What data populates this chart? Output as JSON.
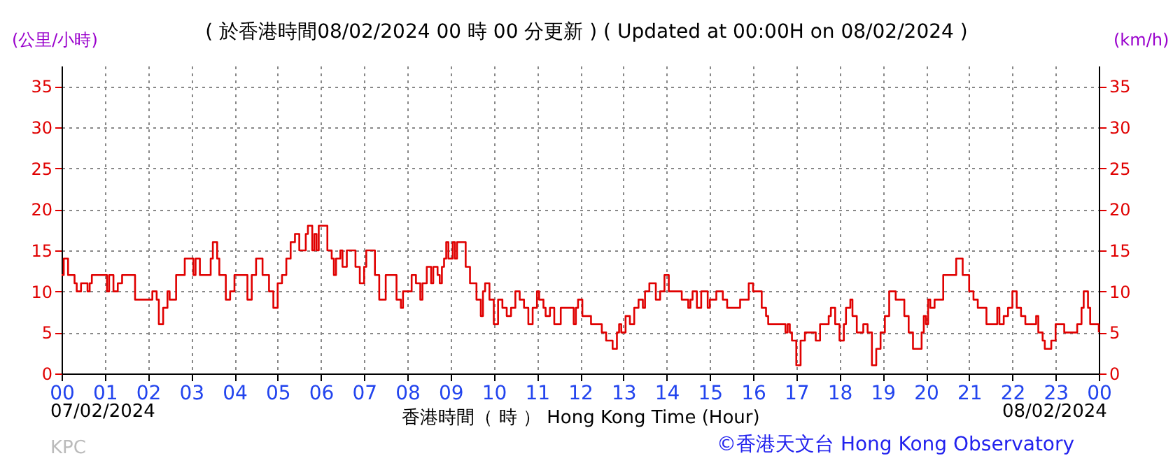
{
  "chart_data": {
    "type": "step",
    "title": "( 於香港時間08/02/2024 00 時 00 分更新 ) ( Updated at 00:00H on 08/02/2024 )",
    "xlabel": "香港時間（ 時 ） Hong Kong Time (Hour)",
    "ylabel": "(公里/小時)",
    "y2label": "(km/h)",
    "annotations": [
      "07/02/2024",
      "08/02/2024",
      "KPC",
      "©香港天文台 Hong Kong Observatory"
    ],
    "x": [
      0,
      0.05,
      0.15,
      0.3,
      0.35,
      0.45,
      0.6,
      0.65,
      0.7,
      1.0,
      1.05,
      1.1,
      1.2,
      1.3,
      1.4,
      1.65,
      1.7,
      2.0,
      2.1,
      2.2,
      2.25,
      2.35,
      2.45,
      2.5,
      2.65,
      2.8,
      2.85,
      3.0,
      3.05,
      3.1,
      3.2,
      3.35,
      3.45,
      3.5,
      3.6,
      3.65,
      3.8,
      3.9,
      4.0,
      4.25,
      4.3,
      4.4,
      4.5,
      4.65,
      4.8,
      4.9,
      5.0,
      5.1,
      5.2,
      5.3,
      5.4,
      5.5,
      5.65,
      5.7,
      5.8,
      5.85,
      5.9,
      5.95,
      6.15,
      6.25,
      6.3,
      6.35,
      6.45,
      6.5,
      6.6,
      6.8,
      6.9,
      7.0,
      7.05,
      7.25,
      7.35,
      7.5,
      7.75,
      7.85,
      7.9,
      8.1,
      8.2,
      8.3,
      8.35,
      8.45,
      8.55,
      8.6,
      8.7,
      8.75,
      8.8,
      8.85,
      8.9,
      8.95,
      9.05,
      9.1,
      9.15,
      9.35,
      9.45,
      9.6,
      9.7,
      9.75,
      9.8,
      9.9,
      10.0,
      10.1,
      10.2,
      10.3,
      10.4,
      10.5,
      10.6,
      10.7,
      10.8,
      10.9,
      11.0,
      11.05,
      11.15,
      11.2,
      11.3,
      11.4,
      11.55,
      11.85,
      11.9,
      11.95,
      12.05,
      12.25,
      12.5,
      12.6,
      12.75,
      12.85,
      12.9,
      12.95,
      13.05,
      13.15,
      13.25,
      13.35,
      13.45,
      13.5,
      13.6,
      13.75,
      13.85,
      13.95,
      14.05,
      14.35,
      14.5,
      14.55,
      14.6,
      14.7,
      14.8,
      14.95,
      15.0,
      15.15,
      15.3,
      15.4,
      15.7,
      15.9,
      16.0,
      16.2,
      16.3,
      16.35,
      16.7,
      16.75,
      16.8,
      16.85,
      16.9,
      17.0,
      17.1,
      17.2,
      17.45,
      17.55,
      17.75,
      17.8,
      17.9,
      18.0,
      18.1,
      18.15,
      18.25,
      18.3,
      18.4,
      18.55,
      18.65,
      18.75,
      18.85,
      18.95,
      19.05,
      19.15,
      19.3,
      19.5,
      19.6,
      19.7,
      19.9,
      19.95,
      20.0,
      20.05,
      20.1,
      20.2,
      20.4,
      20.7,
      20.85,
      21.0,
      21.1,
      21.2,
      21.4,
      21.65,
      21.7,
      21.8,
      21.9,
      22.0,
      22.1,
      22.2,
      22.3,
      22.55,
      22.6,
      22.7,
      22.75,
      22.9,
      23.0,
      23.2,
      23.5,
      23.6,
      23.65,
      23.75,
      23.8,
      24.0
    ],
    "values": [
      12,
      14,
      12,
      11,
      10,
      11,
      10,
      11,
      12,
      12,
      10,
      12,
      10,
      11,
      12,
      12,
      9,
      9,
      10,
      9,
      6,
      8,
      10,
      9,
      12,
      12,
      14,
      14,
      12,
      14,
      12,
      12,
      14,
      16,
      14,
      12,
      9,
      10,
      12,
      12,
      9,
      12,
      14,
      12,
      10,
      8,
      11,
      12,
      14,
      16,
      17,
      15,
      17,
      18,
      15,
      17,
      15,
      18,
      15,
      14,
      12,
      14,
      15,
      13,
      15,
      13,
      11,
      13,
      15,
      12,
      9,
      12,
      9,
      8,
      10,
      12,
      11,
      9,
      11,
      13,
      11,
      13,
      12,
      11,
      13,
      14,
      16,
      14,
      16,
      14,
      16,
      13,
      11,
      9,
      7,
      10,
      11,
      9,
      6,
      9,
      8,
      7,
      8,
      10,
      9,
      8,
      6,
      8,
      10,
      9,
      8,
      7,
      8,
      6,
      8,
      6,
      8,
      9,
      7,
      6,
      5,
      4,
      3,
      5,
      6,
      5,
      7,
      6,
      8,
      9,
      8,
      10,
      11,
      9,
      10,
      12,
      10,
      9,
      8,
      9,
      10,
      8,
      10,
      8,
      9,
      10,
      9,
      8,
      9,
      11,
      10,
      8,
      7,
      6,
      6,
      5,
      6,
      5,
      4,
      1,
      4,
      5,
      4,
      6,
      7,
      8,
      6,
      4,
      6,
      8,
      9,
      7,
      5,
      6,
      5,
      1,
      3,
      5,
      7,
      10,
      9,
      7,
      5,
      3,
      5,
      7,
      6,
      9,
      8,
      9,
      12,
      14,
      12,
      10,
      9,
      8,
      6,
      8,
      6,
      7,
      8,
      10,
      8,
      7,
      6,
      7,
      5,
      4,
      3,
      4,
      6,
      5,
      6,
      8,
      10,
      8,
      6,
      5
    ],
    "color": "#e00000",
    "xlim": [
      0,
      24
    ],
    "ylim": [
      0,
      37.5
    ],
    "y2lim": [
      0,
      37.5
    ],
    "xticks": [
      {
        "value": 0,
        "label": "00"
      },
      {
        "value": 1,
        "label": "01"
      },
      {
        "value": 2,
        "label": "02"
      },
      {
        "value": 3,
        "label": "03"
      },
      {
        "value": 4,
        "label": "04"
      },
      {
        "value": 5,
        "label": "05"
      },
      {
        "value": 6,
        "label": "06"
      },
      {
        "value": 7,
        "label": "07"
      },
      {
        "value": 8,
        "label": "08"
      },
      {
        "value": 9,
        "label": "09"
      },
      {
        "value": 10,
        "label": "10"
      },
      {
        "value": 11,
        "label": "11"
      },
      {
        "value": 12,
        "label": "12"
      },
      {
        "value": 13,
        "label": "13"
      },
      {
        "value": 14,
        "label": "14"
      },
      {
        "value": 15,
        "label": "15"
      },
      {
        "value": 16,
        "label": "16"
      },
      {
        "value": 17,
        "label": "17"
      },
      {
        "value": 18,
        "label": "18"
      },
      {
        "value": 19,
        "label": "19"
      },
      {
        "value": 20,
        "label": "20"
      },
      {
        "value": 21,
        "label": "21"
      },
      {
        "value": 22,
        "label": "22"
      },
      {
        "value": 23,
        "label": "23"
      },
      {
        "value": 24,
        "label": "00"
      }
    ],
    "yticks": [
      0,
      5,
      10,
      15,
      20,
      25,
      30,
      35
    ],
    "y2ticks": [
      0,
      5,
      10,
      15,
      20,
      25,
      30,
      35
    ],
    "grid": true,
    "marker": "none",
    "line_style": "solid"
  }
}
